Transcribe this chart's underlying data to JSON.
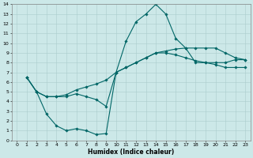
{
  "xlabel": "Humidex (Indice chaleur)",
  "bg_color": "#cce8e8",
  "line_color": "#006666",
  "grid_color": "#aacccc",
  "xlim": [
    -0.5,
    23.5
  ],
  "ylim": [
    0,
    14
  ],
  "xticks": [
    0,
    1,
    2,
    3,
    4,
    5,
    6,
    7,
    8,
    9,
    10,
    11,
    12,
    13,
    14,
    15,
    16,
    17,
    18,
    19,
    20,
    21,
    22,
    23
  ],
  "yticks": [
    0,
    1,
    2,
    3,
    4,
    5,
    6,
    7,
    8,
    9,
    10,
    11,
    12,
    13,
    14
  ],
  "curve1_x": [
    1,
    2,
    3,
    4,
    5,
    6,
    7,
    8,
    9,
    10,
    11,
    12,
    13,
    14,
    15,
    16,
    17,
    18,
    19,
    20,
    21,
    22,
    23
  ],
  "curve1_y": [
    6.5,
    5.0,
    4.5,
    4.5,
    4.7,
    5.2,
    5.5,
    5.8,
    6.2,
    7.0,
    7.5,
    8.0,
    8.5,
    9.0,
    9.2,
    9.4,
    9.5,
    9.5,
    9.5,
    9.5,
    9.0,
    8.5,
    8.3
  ],
  "curve2_x": [
    1,
    2,
    3,
    4,
    5,
    6,
    7,
    8,
    9,
    10,
    11,
    12,
    13,
    14,
    15,
    16,
    17,
    18,
    19,
    20,
    21,
    22,
    23
  ],
  "curve2_y": [
    6.5,
    5.0,
    2.7,
    1.5,
    1.0,
    1.2,
    1.0,
    0.6,
    0.7,
    7.0,
    10.2,
    12.2,
    13.0,
    14.0,
    13.0,
    10.5,
    9.5,
    8.0,
    8.0,
    8.0,
    8.0,
    8.3,
    8.3
  ],
  "curve3_x": [
    1,
    2,
    3,
    4,
    5,
    6,
    7,
    8,
    9,
    10,
    11,
    12,
    13,
    14,
    15,
    16,
    17,
    18,
    19,
    20,
    21,
    22,
    23
  ],
  "curve3_y": [
    6.5,
    5.0,
    4.5,
    4.5,
    4.5,
    4.8,
    4.5,
    4.2,
    3.5,
    7.0,
    7.5,
    8.0,
    8.5,
    9.0,
    9.0,
    8.8,
    8.5,
    8.2,
    8.0,
    7.8,
    7.5,
    7.5,
    7.5
  ]
}
